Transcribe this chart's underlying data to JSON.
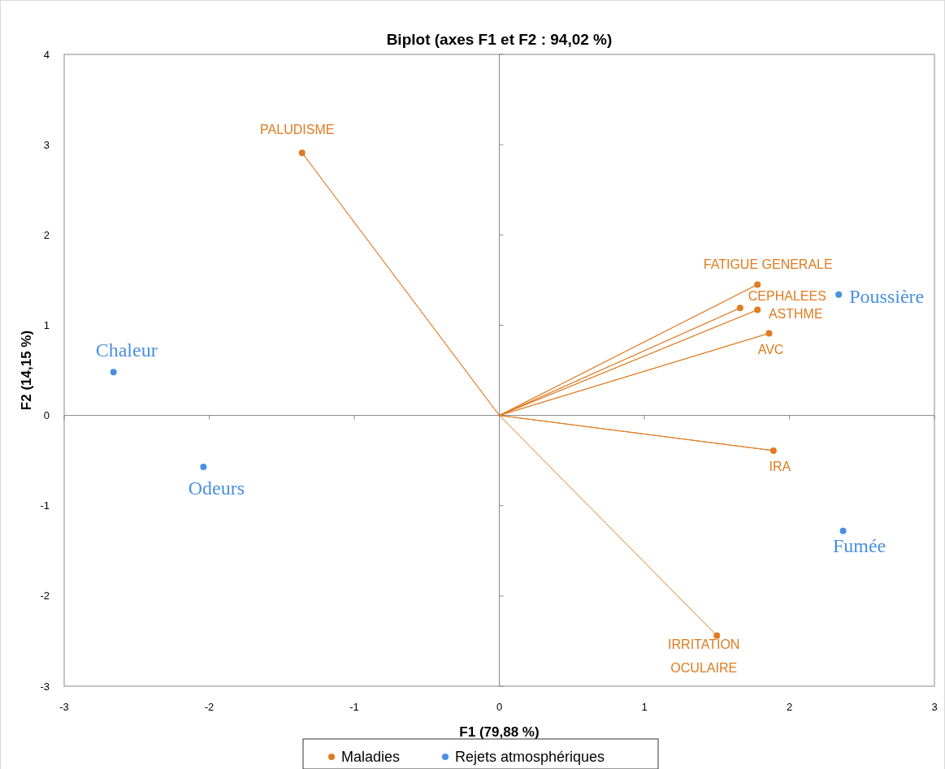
{
  "chart_data": {
    "type": "scatter",
    "title": "Biplot (axes F1 et F2 : 94,02 %)",
    "xlabel": "F1 (79,88 %)",
    "ylabel": "F2 (14,15 %)",
    "xlim": [
      -3,
      3
    ],
    "ylim": [
      -3,
      4
    ],
    "xticks": [
      -3,
      -2,
      -1,
      0,
      1,
      2,
      3
    ],
    "yticks": [
      -3,
      -2,
      -1,
      0,
      1,
      2,
      3,
      4
    ],
    "legend": "bottom",
    "marker": "circle",
    "series": [
      {
        "type": "line",
        "color": "#e07b20",
        "marker": "none",
        "x": [
          0,
          -1.36,
          0,
          1.78,
          0,
          1.66,
          0,
          1.78,
          0,
          1.86,
          0,
          1.89,
          0,
          1.5
        ],
        "values": [
          0,
          2.91,
          0,
          1.45,
          0,
          1.19,
          0,
          1.17,
          0,
          0.91,
          0,
          -0.39,
          0,
          -2.44
        ]
      },
      {
        "name": "Maladies",
        "color": "#e07b20",
        "x": [
          -1.36,
          1.78,
          1.66,
          1.78,
          1.86,
          1.89,
          1.5
        ],
        "values": [
          2.91,
          1.45,
          1.19,
          1.17,
          0.91,
          -0.39,
          -2.44
        ]
      },
      {
        "name": "Rejets atmosphériques",
        "color": "#4a90e2",
        "x": [
          -2.66,
          -2.04,
          2.34,
          2.37
        ],
        "values": [
          0.48,
          -0.57,
          1.34,
          -1.28
        ]
      }
    ],
    "annotations": [
      {
        "text": "PALUDISME",
        "x": -1.36,
        "y": 2.91
      },
      {
        "text": "FATIGUE GENERALE",
        "x": 1.78,
        "y": 1.45
      },
      {
        "text": "CEPHALEES",
        "x": 1.66,
        "y": 1.19
      },
      {
        "text": "ASTHME",
        "x": 1.78,
        "y": 1.17
      },
      {
        "text": "AVC",
        "x": 1.86,
        "y": 0.91
      },
      {
        "text": "IRA",
        "x": 1.89,
        "y": -0.39
      },
      {
        "text": "IRRITATION OCULAIRE",
        "x": 1.5,
        "y": -2.44
      },
      {
        "text": "Chaleur",
        "x": -2.66,
        "y": 0.48
      },
      {
        "text": "Odeurs",
        "x": -2.04,
        "y": -0.57
      },
      {
        "text": "Poussière",
        "x": 2.34,
        "y": 1.34
      },
      {
        "text": "Fumée",
        "x": 2.37,
        "y": -1.28
      }
    ]
  }
}
